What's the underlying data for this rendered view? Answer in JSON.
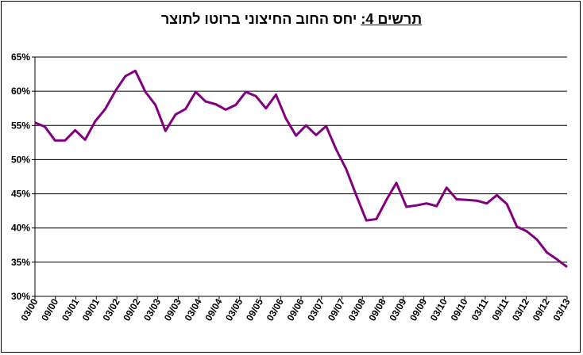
{
  "chart_data": {
    "type": "line",
    "title_label": "תרשים 4:",
    "title_text": "יחס החוב החיצוני  ברוטו לתוצר",
    "xlabel": "",
    "ylabel": "",
    "ylim": [
      30,
      65
    ],
    "yticks": [
      "30%",
      "35%",
      "40%",
      "45%",
      "50%",
      "55%",
      "60%",
      "65%"
    ],
    "ytick_values": [
      30,
      35,
      40,
      45,
      50,
      55,
      60,
      65
    ],
    "xtick_labels": [
      "03/00",
      "09/00",
      "03/01",
      "09/01",
      "03/02",
      "09/02",
      "03/03",
      "09/03",
      "03/04",
      "09/04",
      "03/05",
      "09/05",
      "03/06",
      "09/06",
      "03/07",
      "09/07",
      "03/08",
      "09/08",
      "03/09",
      "09/09",
      "03/10",
      "09/10",
      "03/11",
      "09/11",
      "03/12",
      "09/12",
      "03/13"
    ],
    "grid": true,
    "line_color": "#800080",
    "series": [
      {
        "values": [
          55.4,
          54.8,
          52.8,
          52.8,
          54.3,
          52.9,
          55.6,
          57.4,
          60.0,
          62.2,
          63.0,
          59.9,
          58.0,
          54.2,
          56.6,
          57.4,
          59.9,
          58.5,
          58.1,
          57.3,
          58.0,
          59.9,
          59.3,
          57.5,
          59.5,
          56.0,
          53.5,
          55.0,
          53.6,
          54.9,
          51.5,
          48.6,
          44.8,
          41.1,
          41.3,
          44.1,
          46.6,
          43.1,
          43.3,
          43.6,
          43.2,
          45.9,
          44.2,
          44.1,
          44.0,
          43.6,
          44.8,
          43.5,
          40.2,
          39.5,
          38.3,
          36.4,
          35.4,
          34.3
        ]
      }
    ]
  }
}
